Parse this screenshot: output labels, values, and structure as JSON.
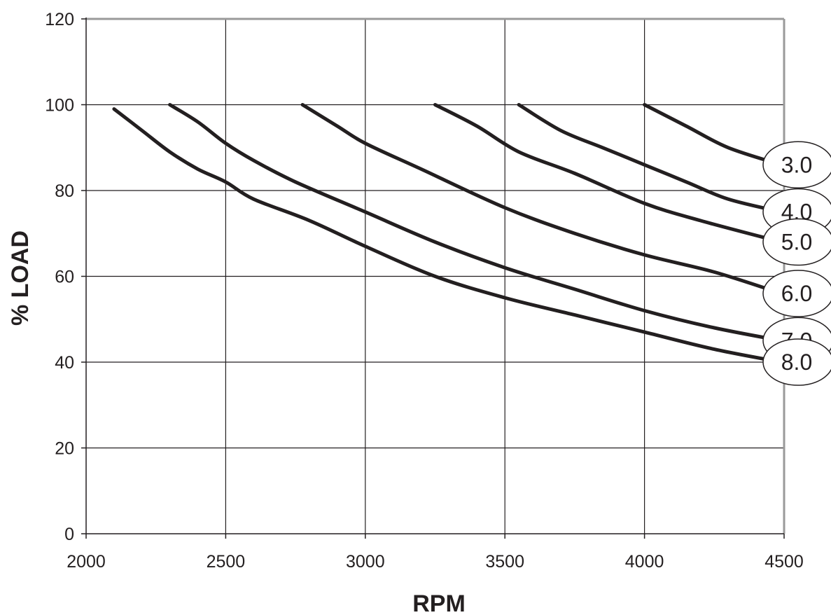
{
  "chart_data": {
    "type": "line",
    "xlabel": "RPM",
    "ylabel": "% LOAD",
    "xlim": [
      2000,
      4500
    ],
    "ylim": [
      0,
      120
    ],
    "x_ticks": [
      2000,
      2500,
      3000,
      3500,
      4000,
      4500
    ],
    "y_ticks": [
      0,
      20,
      40,
      60,
      80,
      100,
      120
    ],
    "grid": true,
    "series": [
      {
        "name": "3.0",
        "points": [
          [
            4000,
            100
          ],
          [
            4150,
            95
          ],
          [
            4300,
            90
          ],
          [
            4490,
            86
          ]
        ]
      },
      {
        "name": "4.0",
        "points": [
          [
            3550,
            100
          ],
          [
            3700,
            94
          ],
          [
            3850,
            90
          ],
          [
            4000,
            86
          ],
          [
            4150,
            82
          ],
          [
            4300,
            78
          ],
          [
            4490,
            75
          ]
        ]
      },
      {
        "name": "5.0",
        "points": [
          [
            3250,
            100
          ],
          [
            3400,
            95
          ],
          [
            3550,
            89
          ],
          [
            3750,
            84
          ],
          [
            4000,
            77
          ],
          [
            4200,
            73
          ],
          [
            4490,
            68
          ]
        ]
      },
      {
        "name": "6.0",
        "points": [
          [
            2775,
            100
          ],
          [
            2900,
            95
          ],
          [
            3000,
            91
          ],
          [
            3200,
            85
          ],
          [
            3500,
            76
          ],
          [
            3750,
            70
          ],
          [
            4000,
            65
          ],
          [
            4250,
            61
          ],
          [
            4490,
            56
          ]
        ]
      },
      {
        "name": "7.0",
        "points": [
          [
            2300,
            100
          ],
          [
            2400,
            96
          ],
          [
            2500,
            91
          ],
          [
            2600,
            87
          ],
          [
            2750,
            82
          ],
          [
            3000,
            75
          ],
          [
            3250,
            68
          ],
          [
            3500,
            62
          ],
          [
            3750,
            57
          ],
          [
            4000,
            52
          ],
          [
            4250,
            48
          ],
          [
            4490,
            45
          ]
        ]
      },
      {
        "name": "8.0",
        "points": [
          [
            2100,
            99
          ],
          [
            2200,
            94
          ],
          [
            2300,
            89
          ],
          [
            2400,
            85
          ],
          [
            2500,
            82
          ],
          [
            2600,
            78
          ],
          [
            2800,
            73
          ],
          [
            3000,
            67
          ],
          [
            3250,
            60
          ],
          [
            3500,
            55
          ],
          [
            3750,
            51
          ],
          [
            4000,
            47
          ],
          [
            4250,
            43
          ],
          [
            4490,
            40
          ]
        ]
      }
    ]
  }
}
